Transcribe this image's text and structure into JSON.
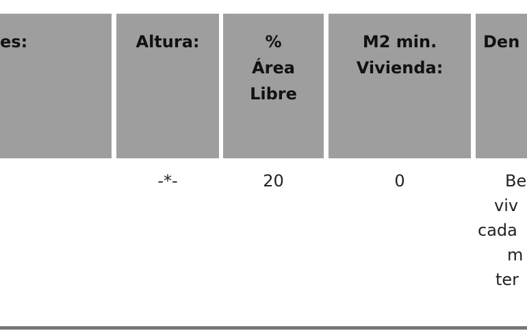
{
  "table": {
    "headers": [
      "es:",
      "Altura:",
      "% Área Libre",
      "M2 min. Vivienda:",
      "Den"
    ],
    "header_lines": {
      "c0": [
        "es:"
      ],
      "c1": [
        "Altura:"
      ],
      "c2": [
        "%",
        "Área",
        "Libre"
      ],
      "c3": [
        "M2 min.",
        "Vivienda:"
      ],
      "c4": [
        "Den"
      ]
    },
    "row": {
      "altura": "-*-",
      "area_libre": "20",
      "m2_min": "0",
      "densidad_lines": [
        "Be",
        "viv",
        "cada",
        "m",
        "ter"
      ]
    }
  },
  "colors": {
    "header_bg": "#9e9e9e",
    "rule": "#777777"
  }
}
